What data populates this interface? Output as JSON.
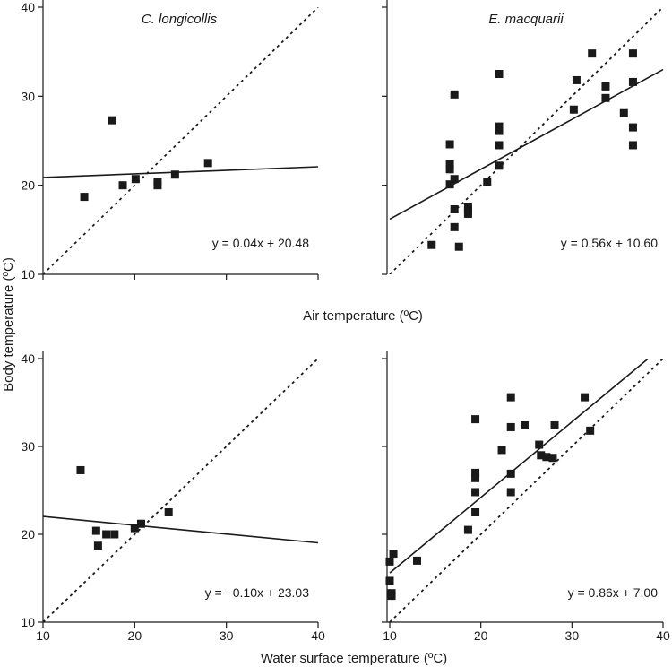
{
  "figure": {
    "shared_xlabel_top": "Air temperature (ºC)",
    "shared_xlabel_bottom": "Water surface temperature (ºC)",
    "shared_ylabel": "Body temperature (ºC)"
  },
  "chart_data": [
    {
      "type": "scatter",
      "title": "C. longicollis",
      "xlabel": "Air temperature (ºC)",
      "ylabel": "Body temperature (ºC)",
      "xlim": [
        10,
        40
      ],
      "ylim": [
        10,
        40
      ],
      "xticks": [
        "10",
        "20",
        "30",
        "40"
      ],
      "yticks": [
        "10",
        "20",
        "30",
        "40"
      ],
      "show_xtick_labels": false,
      "show_ytick_labels": true,
      "equation": "y = 0.04x + 20.48",
      "fit": {
        "slope": 0.04,
        "intercept": 20.48
      },
      "reference": "y = x",
      "points": [
        {
          "x": 14.5,
          "y": 18.7
        },
        {
          "x": 17.5,
          "y": 27.3
        },
        {
          "x": 18.7,
          "y": 20.0
        },
        {
          "x": 20.1,
          "y": 20.7
        },
        {
          "x": 22.5,
          "y": 20.0
        },
        {
          "x": 22.5,
          "y": 20.4
        },
        {
          "x": 24.4,
          "y": 21.2
        },
        {
          "x": 28.0,
          "y": 22.5
        }
      ]
    },
    {
      "type": "scatter",
      "title": "E. macquarii",
      "xlabel": "Air temperature (ºC)",
      "ylabel": "Body temperature (ºC)",
      "xlim": [
        10,
        40
      ],
      "ylim": [
        10,
        40
      ],
      "xticks": [
        "10",
        "20",
        "30",
        "40"
      ],
      "yticks": [
        "10",
        "20",
        "30",
        "40"
      ],
      "show_xtick_labels": false,
      "show_ytick_labels": false,
      "equation": "y = 0.56x + 10.60",
      "fit": {
        "slope": 0.56,
        "intercept": 10.6
      },
      "reference": "y = x",
      "points": [
        {
          "x": 14.6,
          "y": 13.3
        },
        {
          "x": 16.6,
          "y": 24.6
        },
        {
          "x": 16.6,
          "y": 22.4
        },
        {
          "x": 16.6,
          "y": 21.8
        },
        {
          "x": 16.6,
          "y": 20.1
        },
        {
          "x": 17.1,
          "y": 30.2
        },
        {
          "x": 17.1,
          "y": 20.7
        },
        {
          "x": 17.1,
          "y": 17.3
        },
        {
          "x": 17.1,
          "y": 15.3
        },
        {
          "x": 17.6,
          "y": 13.1
        },
        {
          "x": 18.6,
          "y": 17.6
        },
        {
          "x": 18.6,
          "y": 17.2
        },
        {
          "x": 18.6,
          "y": 16.8
        },
        {
          "x": 20.7,
          "y": 20.4
        },
        {
          "x": 22.0,
          "y": 32.5
        },
        {
          "x": 22.0,
          "y": 26.6
        },
        {
          "x": 22.0,
          "y": 26.1
        },
        {
          "x": 22.0,
          "y": 24.5
        },
        {
          "x": 22.0,
          "y": 22.2
        },
        {
          "x": 30.2,
          "y": 28.5
        },
        {
          "x": 30.5,
          "y": 31.8
        },
        {
          "x": 32.2,
          "y": 34.8
        },
        {
          "x": 33.7,
          "y": 31.1
        },
        {
          "x": 33.7,
          "y": 29.8
        },
        {
          "x": 35.7,
          "y": 28.1
        },
        {
          "x": 36.7,
          "y": 34.8
        },
        {
          "x": 36.7,
          "y": 31.6
        },
        {
          "x": 36.7,
          "y": 26.5
        },
        {
          "x": 36.7,
          "y": 24.5
        }
      ]
    },
    {
      "type": "scatter",
      "title": "",
      "xlabel": "Water surface temperature (ºC)",
      "ylabel": "Body temperature (ºC)",
      "xlim": [
        10,
        40
      ],
      "ylim": [
        10,
        40
      ],
      "xticks": [
        "10",
        "20",
        "30",
        "40"
      ],
      "yticks": [
        "10",
        "20",
        "30",
        "40"
      ],
      "show_xtick_labels": true,
      "show_ytick_labels": true,
      "equation": "y = −0.10x + 23.03",
      "fit": {
        "slope": -0.1,
        "intercept": 23.03
      },
      "reference": "y = x",
      "points": [
        {
          "x": 14.1,
          "y": 27.3
        },
        {
          "x": 15.8,
          "y": 20.4
        },
        {
          "x": 16.0,
          "y": 18.7
        },
        {
          "x": 16.9,
          "y": 20.0
        },
        {
          "x": 17.8,
          "y": 20.0
        },
        {
          "x": 20.0,
          "y": 20.7
        },
        {
          "x": 20.7,
          "y": 21.2
        },
        {
          "x": 23.7,
          "y": 22.5
        }
      ]
    },
    {
      "type": "scatter",
      "title": "",
      "xlabel": "Water surface temperature (ºC)",
      "ylabel": "Body temperature (ºC)",
      "xlim": [
        10,
        40
      ],
      "ylim": [
        10,
        40
      ],
      "xticks": [
        "10",
        "20",
        "30",
        "40"
      ],
      "yticks": [
        "10",
        "20",
        "30",
        "40"
      ],
      "show_xtick_labels": true,
      "show_ytick_labels": false,
      "equation": "y = 0.86x + 7.00",
      "fit": {
        "slope": 0.86,
        "intercept": 7.0
      },
      "reference": "y = x",
      "points": [
        {
          "x": 10.0,
          "y": 16.9
        },
        {
          "x": 10.0,
          "y": 14.7
        },
        {
          "x": 10.2,
          "y": 13.3
        },
        {
          "x": 10.2,
          "y": 13.0
        },
        {
          "x": 10.4,
          "y": 17.8
        },
        {
          "x": 13.0,
          "y": 17.0
        },
        {
          "x": 18.6,
          "y": 20.5
        },
        {
          "x": 19.4,
          "y": 33.1
        },
        {
          "x": 19.4,
          "y": 27.0
        },
        {
          "x": 19.4,
          "y": 26.4
        },
        {
          "x": 19.4,
          "y": 24.8
        },
        {
          "x": 19.4,
          "y": 22.5
        },
        {
          "x": 22.3,
          "y": 29.6
        },
        {
          "x": 23.3,
          "y": 35.6
        },
        {
          "x": 23.3,
          "y": 32.2
        },
        {
          "x": 23.3,
          "y": 26.9
        },
        {
          "x": 23.3,
          "y": 24.8
        },
        {
          "x": 24.8,
          "y": 32.4
        },
        {
          "x": 26.4,
          "y": 30.2
        },
        {
          "x": 26.6,
          "y": 29.0
        },
        {
          "x": 27.2,
          "y": 28.8
        },
        {
          "x": 27.9,
          "y": 28.7
        },
        {
          "x": 28.1,
          "y": 32.4
        },
        {
          "x": 31.4,
          "y": 35.6
        },
        {
          "x": 32.0,
          "y": 31.8
        }
      ]
    }
  ]
}
